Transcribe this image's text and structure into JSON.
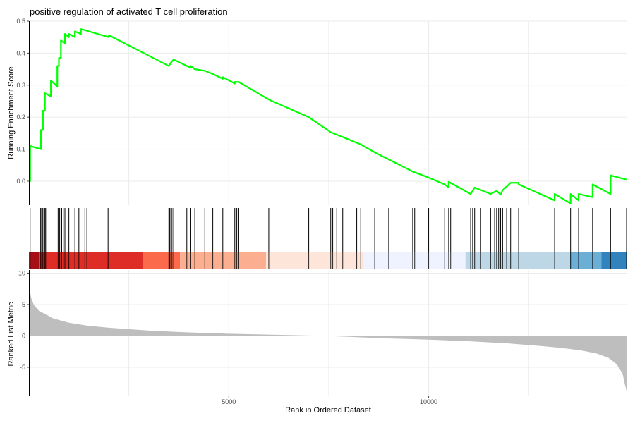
{
  "chart_data": {
    "type": "line",
    "title": "positive regulation of activated T cell proliferation",
    "xlabel": "Rank in Ordered Dataset",
    "x_range": [
      0,
      14950
    ],
    "x_ticks": [
      5000,
      10000
    ],
    "x_grid": [
      2500,
      5000,
      7500,
      10000,
      12500
    ],
    "colors": {
      "es_line": "#00ff00",
      "metric_fill": "#bebebe",
      "hit_line": "#000000"
    },
    "panels": {
      "enrichment": {
        "ylabel": "Running Enrichment Score",
        "ylim": [
          -0.075,
          0.5
        ],
        "y_ticks": [
          0.0,
          0.1,
          0.2,
          0.3,
          0.4,
          0.5
        ],
        "series": [
          {
            "x": [
              0,
              30,
              30,
              300,
              300,
              350,
              350,
              400,
              400,
              550,
              550,
              710,
              710,
              750,
              750,
              800,
              800,
              900,
              900,
              1000,
              1000,
              1150,
              1150,
              1300,
              1300,
              1450,
              1450,
              2000,
              2000,
              3500,
              3500,
              3550,
              3550,
              3620,
              3620,
              3950,
              3950,
              4050,
              4050,
              4150,
              4150,
              4400,
              4400,
              4600,
              4600,
              4850,
              4850,
              5150,
              5150,
              5250,
              5250,
              6000,
              6000,
              7000,
              7000,
              7550,
              7550,
              7700,
              7700,
              7850,
              7850,
              8200,
              8200,
              8300,
              8300,
              8650,
              8650,
              9000,
              9000,
              9600,
              9600,
              10000,
              10000,
              10400,
              10400,
              10500,
              10500,
              11050,
              11050,
              11150,
              11150,
              11550,
              11550,
              11700,
              11700,
              11800,
              11800,
              11850,
              11850,
              11950,
              11950,
              12050,
              12050,
              12250,
              12250,
              13150,
              13150,
              13550,
              13550,
              13750,
              13750,
              14100,
              14100,
              14550,
              14550,
              14950
            ],
            "y": [
              0.0,
              0.0,
              0.11,
              0.1,
              0.16,
              0.16,
              0.22,
              0.22,
              0.275,
              0.265,
              0.315,
              0.295,
              0.36,
              0.36,
              0.385,
              0.385,
              0.44,
              0.43,
              0.46,
              0.45,
              0.46,
              0.45,
              0.468,
              0.46,
              0.475,
              0.47,
              0.47,
              0.45,
              0.456,
              0.36,
              0.36,
              0.37,
              0.37,
              0.38,
              0.38,
              0.36,
              0.36,
              0.355,
              0.36,
              0.35,
              0.35,
              0.345,
              0.345,
              0.335,
              0.335,
              0.32,
              0.325,
              0.305,
              0.31,
              0.31,
              0.31,
              0.255,
              0.255,
              0.2,
              0.2,
              0.153,
              0.153,
              0.145,
              0.145,
              0.138,
              0.138,
              0.12,
              0.12,
              0.115,
              0.115,
              0.09,
              0.09,
              0.068,
              0.068,
              0.03,
              0.03,
              0.011,
              0.011,
              -0.01,
              -0.01,
              -0.02,
              -0.002,
              -0.04,
              -0.04,
              -0.02,
              -0.02,
              -0.04,
              -0.04,
              -0.03,
              -0.03,
              -0.042,
              -0.042,
              -0.028,
              -0.028,
              -0.017,
              -0.017,
              -0.005,
              -0.005,
              -0.005,
              -0.01,
              -0.06,
              -0.04,
              -0.07,
              -0.04,
              -0.06,
              -0.04,
              -0.05,
              -0.01,
              -0.04,
              0.018,
              0.005
            ]
          }
        ]
      },
      "hits": {
        "positions": [
          30,
          280,
          300,
          330,
          350,
          380,
          400,
          420,
          730,
          770,
          820,
          870,
          900,
          1000,
          1050,
          1150,
          1250,
          1400,
          1450,
          1980,
          3500,
          3520,
          3550,
          3580,
          3620,
          3950,
          4050,
          4150,
          4400,
          4600,
          4850,
          5150,
          5200,
          5250,
          6000,
          7000,
          7550,
          7600,
          7700,
          7850,
          8200,
          8300,
          8650,
          9000,
          9600,
          9650,
          10000,
          10400,
          10500,
          10550,
          11050,
          11100,
          11150,
          11300,
          11550,
          11650,
          11700,
          11750,
          11800,
          11850,
          11950,
          12050,
          12250,
          13150,
          13550,
          13750,
          14100,
          14550,
          14950
        ]
      },
      "heatmap": {
        "bands": [
          {
            "start": 0,
            "end": 250,
            "color": "#a50f15"
          },
          {
            "start": 250,
            "end": 2850,
            "color": "#de2d26"
          },
          {
            "start": 2850,
            "end": 3780,
            "color": "#fb6a4a"
          },
          {
            "start": 3780,
            "end": 5930,
            "color": "#fcae91"
          },
          {
            "start": 5930,
            "end": 8380,
            "color": "#fee5d9"
          },
          {
            "start": 8380,
            "end": 10920,
            "color": "#eff3ff"
          },
          {
            "start": 10920,
            "end": 13540,
            "color": "#bdd7e7"
          },
          {
            "start": 13540,
            "end": 14320,
            "color": "#6baed6"
          },
          {
            "start": 14320,
            "end": 14950,
            "color": "#3182bd"
          }
        ]
      },
      "ranked": {
        "ylabel": "Ranked List Metric",
        "ylim": [
          -9.5,
          10.5
        ],
        "y_ticks": [
          -5,
          0,
          5,
          10
        ],
        "x": [
          0,
          20,
          60,
          120,
          250,
          400,
          600,
          1000,
          1500,
          2000,
          3000,
          4000,
          5000,
          6000,
          7000,
          7400,
          7600,
          8000,
          9000,
          10000,
          11000,
          12000,
          12800,
          13300,
          13800,
          14200,
          14500,
          14700,
          14850,
          14900,
          14950
        ],
        "values": [
          9.5,
          7.2,
          6.0,
          5.0,
          4.0,
          3.5,
          2.8,
          2.1,
          1.6,
          1.3,
          0.85,
          0.55,
          0.35,
          0.2,
          0.06,
          0.0,
          -0.05,
          -0.15,
          -0.4,
          -0.6,
          -0.85,
          -1.2,
          -1.6,
          -1.9,
          -2.3,
          -2.8,
          -3.5,
          -4.5,
          -6.0,
          -7.5,
          -8.8
        ]
      }
    }
  }
}
